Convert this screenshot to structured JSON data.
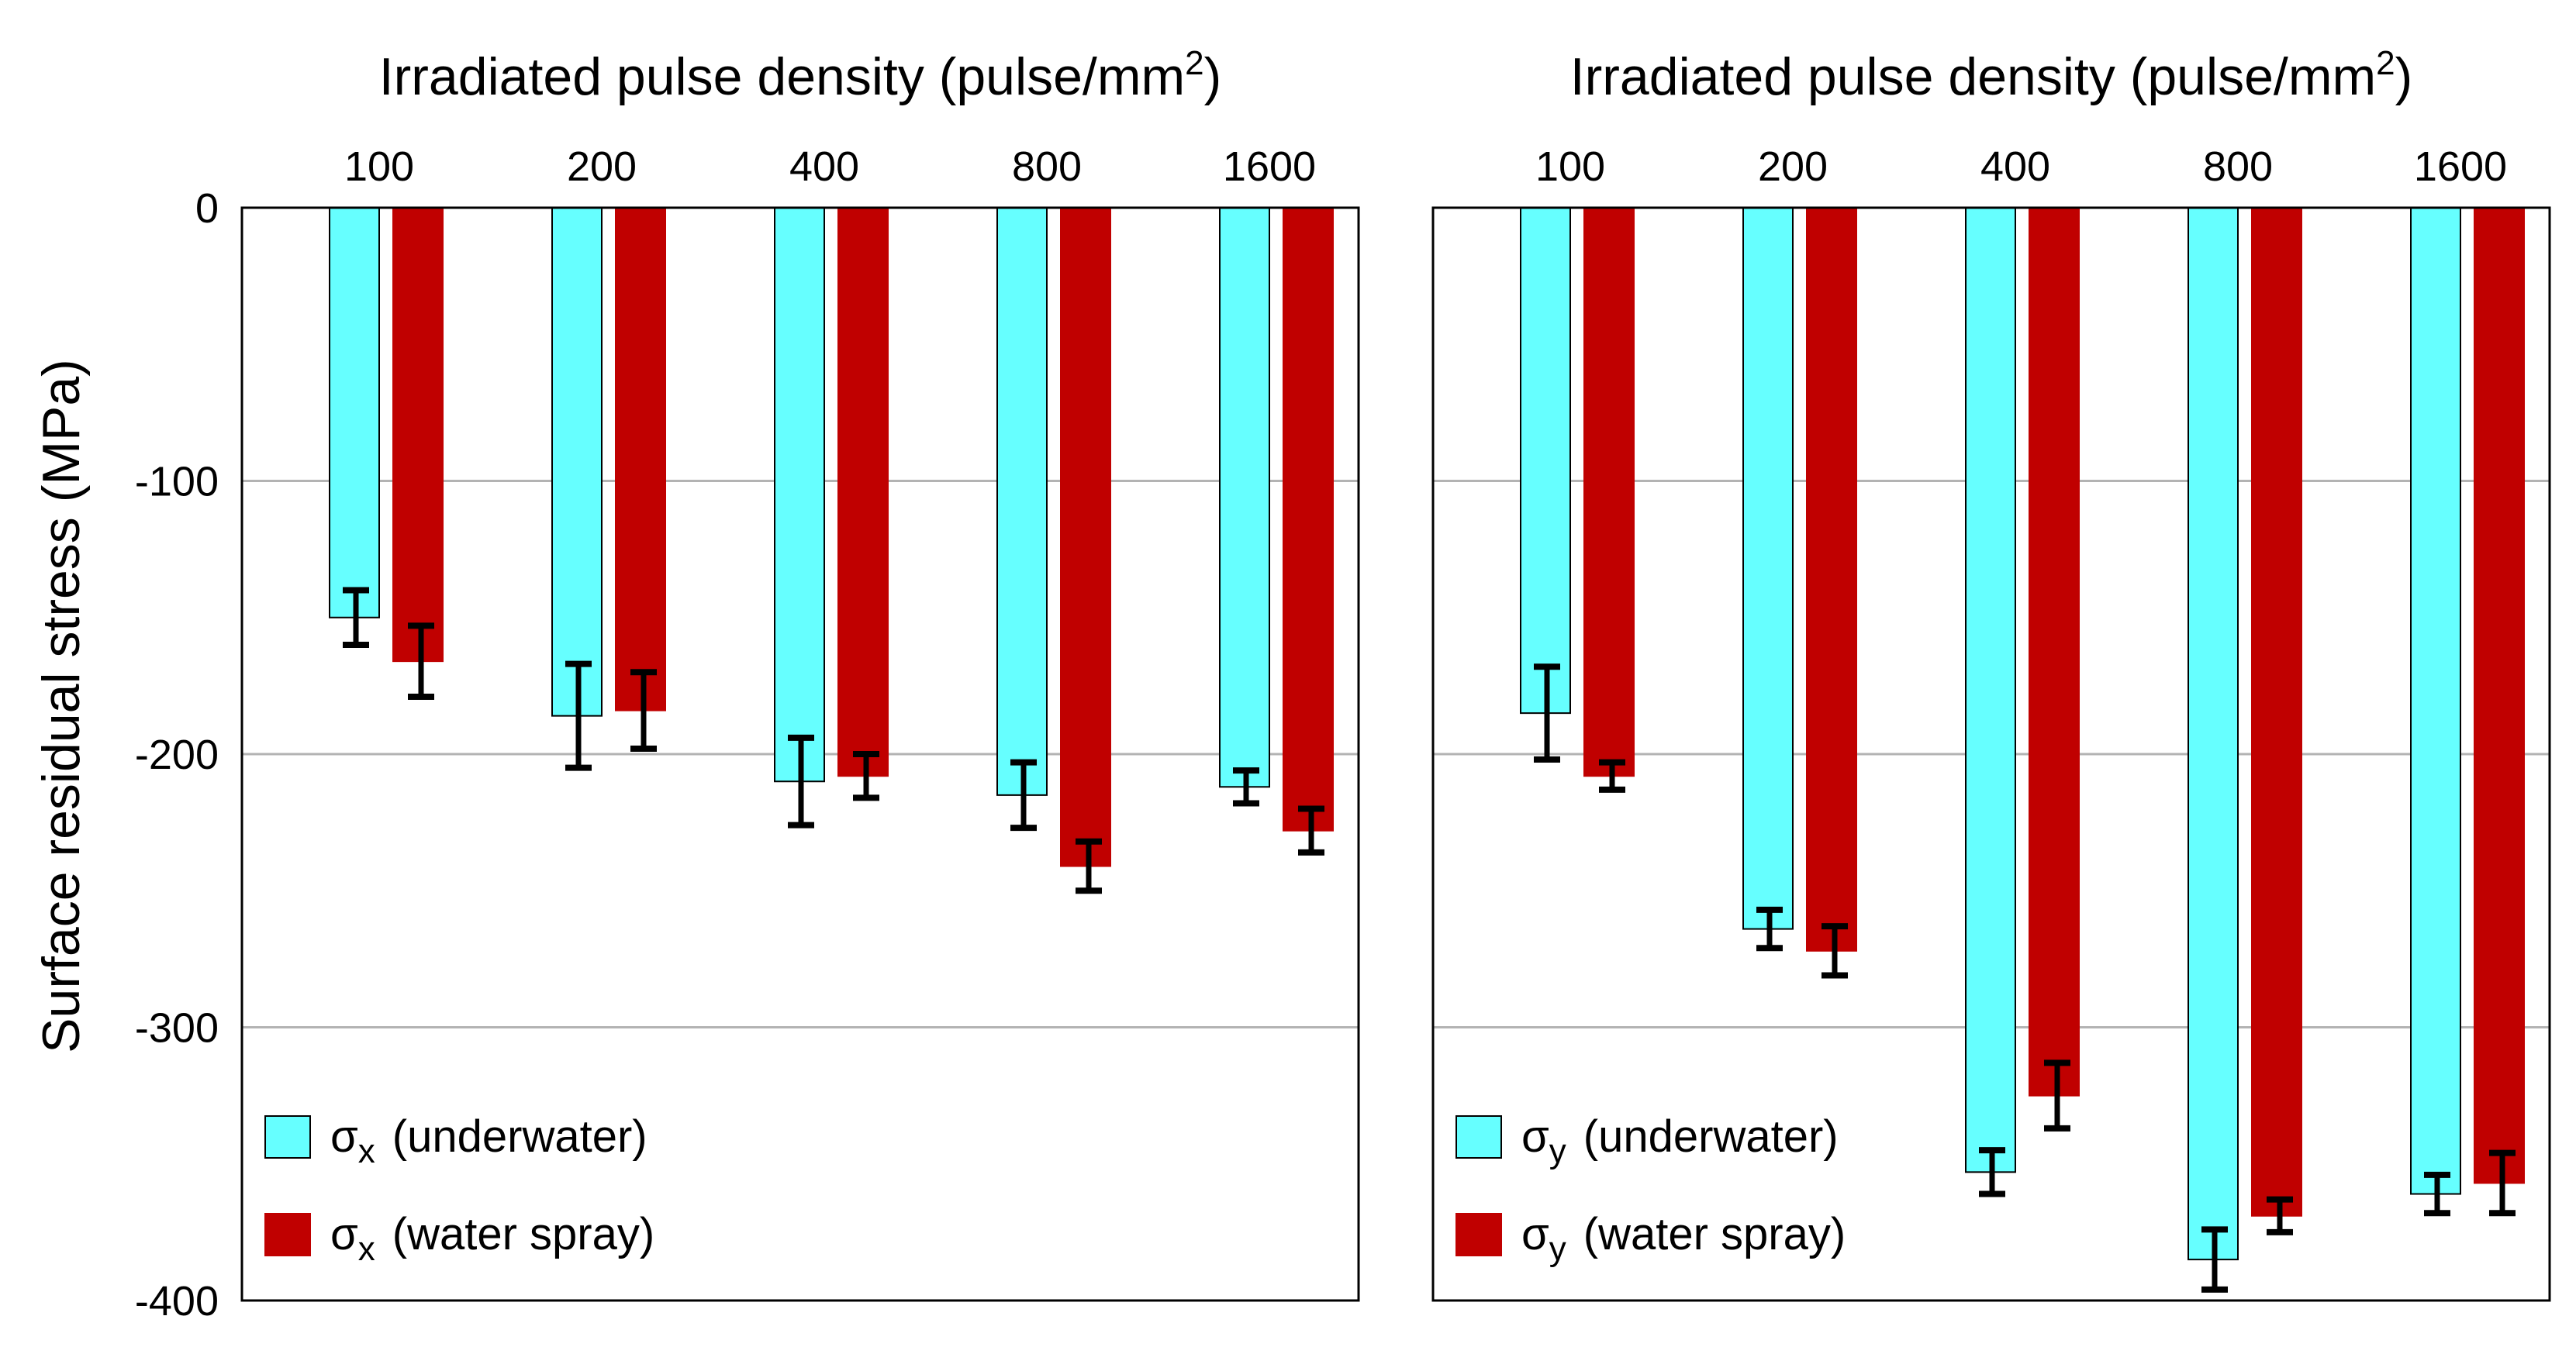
{
  "chart_data": {
    "type": "bar",
    "ylabel": "Surface residual stress (MPa)",
    "ylim": [
      -400,
      0
    ],
    "yticks": [
      0,
      -100,
      -200,
      -300,
      -400
    ],
    "yticks_label": [
      "0",
      "-100",
      "-200",
      "-300",
      "-400"
    ],
    "grid": true,
    "panels": [
      {
        "title_main": "Irradiated pulse density (pulse/mm",
        "title_sup": "2",
        "title_close": ")",
        "categories": [
          "100",
          "200",
          "400",
          "800",
          "1600"
        ],
        "series": [
          {
            "name": "underwater",
            "legend_symbol": "σ",
            "legend_sub": "x",
            "legend_text": "(underwater)",
            "color": "#66FFFF",
            "values": [
              -150,
              -186,
              -210,
              -215,
              -212
            ],
            "error": [
              10,
              19,
              16,
              12,
              6
            ]
          },
          {
            "name": "water spray",
            "legend_symbol": "σ",
            "legend_sub": "x",
            "legend_text": "(water spray)",
            "color": "#C00000",
            "values": [
              -166,
              -184,
              -208,
              -241,
              -228
            ],
            "error": [
              13,
              14,
              8,
              9,
              8
            ]
          }
        ]
      },
      {
        "title_main": "Irradiated pulse density (pulse/mm",
        "title_sup": "2",
        "title_close": ")",
        "categories": [
          "100",
          "200",
          "400",
          "800",
          "1600"
        ],
        "series": [
          {
            "name": "underwater",
            "legend_symbol": "σ",
            "legend_sub": "y",
            "legend_text": "(underwater)",
            "color": "#66FFFF",
            "values": [
              -185,
              -264,
              -353,
              -385,
              -361
            ],
            "error": [
              17,
              7,
              8,
              11,
              7
            ]
          },
          {
            "name": "water spray",
            "legend_symbol": "σ",
            "legend_sub": "y",
            "legend_text": "(water spray)",
            "color": "#C00000",
            "values": [
              -208,
              -272,
              -325,
              -369,
              -357
            ],
            "error": [
              5,
              9,
              12,
              6,
              11
            ]
          }
        ]
      }
    ]
  }
}
